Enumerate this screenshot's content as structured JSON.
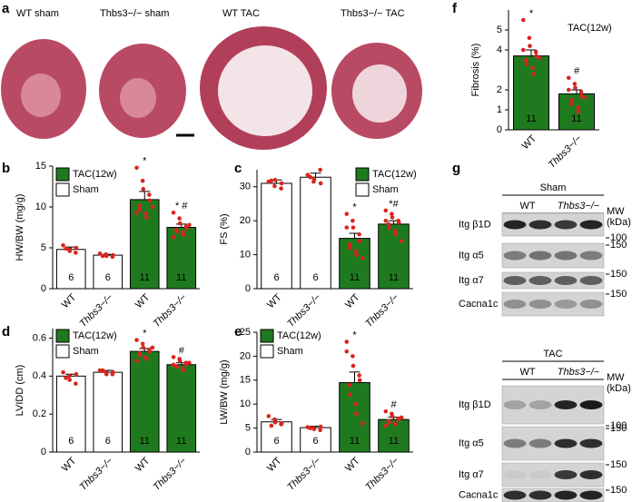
{
  "panel_a": {
    "label": "a",
    "images": [
      "WT sham",
      "Thbs3−/− sham",
      "WT TAC",
      "Thbs3−/− TAC"
    ]
  },
  "chart_data": [
    {
      "type": "bar",
      "panel": "b",
      "ylabel": "HW/BW (mg/g)",
      "categories": [
        "WT",
        "Thbs3−/−",
        "WT",
        "Thbs3−/−"
      ],
      "values": [
        4.8,
        4.1,
        10.9,
        7.5
      ],
      "errors": [
        0.3,
        0.1,
        1.0,
        0.4
      ],
      "colors": [
        "#ffffff",
        "#ffffff",
        "#1f7a1f",
        "#1f7a1f"
      ],
      "n": [
        6,
        6,
        11,
        11
      ],
      "points": [
        [
          5.3,
          4.8,
          4.6,
          4.4,
          5.0,
          4.9
        ],
        [
          4.3,
          4.2,
          4.0,
          3.9,
          4.1,
          4.0
        ],
        [
          14.8,
          13.2,
          12.2,
          11.5,
          10.8,
          10.2,
          9.7,
          9.2,
          8.7,
          10.0,
          9.3
        ],
        [
          9.3,
          8.6,
          8.0,
          7.6,
          7.4,
          7.2,
          7.0,
          6.9,
          6.6,
          7.8,
          6.3
        ]
      ],
      "point_color": "#d7261e",
      "ylim": [
        0,
        15
      ],
      "yticks": [
        0,
        5,
        10,
        15
      ],
      "legend": [
        {
          "name": "TAC(12w)",
          "color": "#1f7a1f",
          "text_color": "#d7261e"
        },
        {
          "name": "Sham",
          "color": "#ffffff",
          "text_color": "#000000"
        }
      ],
      "annotations": [
        {
          "index": 2,
          "text": "*"
        },
        {
          "index": 3,
          "text": "* #"
        }
      ]
    },
    {
      "type": "bar",
      "panel": "c",
      "ylabel": "FS (%)",
      "categories": [
        "WT",
        "Thbs3−/−",
        "WT",
        "Thbs3−/−"
      ],
      "values": [
        31,
        32.8,
        14.8,
        19
      ],
      "errors": [
        1.0,
        1.2,
        1.5,
        1.0
      ],
      "colors": [
        "#ffffff",
        "#ffffff",
        "#1f7a1f",
        "#1f7a1f"
      ],
      "n": [
        6,
        6,
        11,
        11
      ],
      "points": [
        [
          31.5,
          30.2,
          32.0,
          29.5,
          31.0,
          31.8
        ],
        [
          33.5,
          31.5,
          32.2,
          35,
          31,
          32.8
        ],
        [
          22,
          20,
          18,
          16,
          14,
          13,
          12,
          11,
          10,
          9,
          18
        ],
        [
          23,
          22,
          21,
          20,
          19.5,
          19,
          18,
          17,
          16,
          14,
          20
        ]
      ],
      "point_color": "#d7261e",
      "ylim": [
        0,
        35
      ],
      "yticks": [
        0,
        10,
        20,
        30
      ],
      "legend": [
        {
          "name": "TAC(12w)",
          "color": "#1f7a1f",
          "text_color": "#d7261e"
        },
        {
          "name": "Sham",
          "color": "#ffffff",
          "text_color": "#000000"
        }
      ],
      "annotations": [
        {
          "index": 2,
          "text": "*"
        },
        {
          "index": 3,
          "text": "*#"
        }
      ]
    },
    {
      "type": "bar",
      "panel": "d",
      "ylabel": "LVIDD (cm)",
      "categories": [
        "WT",
        "Thbs3−/−",
        "WT",
        "Thbs3−/−"
      ],
      "values": [
        0.4,
        0.42,
        0.53,
        0.46
      ],
      "errors": [
        0.01,
        0.01,
        0.015,
        0.01
      ],
      "colors": [
        "#ffffff",
        "#ffffff",
        "#1f7a1f",
        "#1f7a1f"
      ],
      "n": [
        6,
        6,
        11,
        11
      ],
      "points": [
        [
          0.42,
          0.4,
          0.38,
          0.36,
          0.41,
          0.39
        ],
        [
          0.43,
          0.42,
          0.41,
          0.41,
          0.42,
          0.43
        ],
        [
          0.59,
          0.57,
          0.55,
          0.54,
          0.53,
          0.52,
          0.51,
          0.5,
          0.49,
          0.55,
          0.48
        ],
        [
          0.5,
          0.49,
          0.48,
          0.47,
          0.46,
          0.45,
          0.45,
          0.44,
          0.43,
          0.47,
          0.46
        ]
      ],
      "point_color": "#d7261e",
      "ylim": [
        0,
        0.65
      ],
      "yticks": [
        0,
        0.2,
        0.4,
        0.6
      ],
      "legend": [
        {
          "name": "TAC(12w)",
          "color": "#1f7a1f",
          "text_color": "#d7261e"
        },
        {
          "name": "Sham",
          "color": "#ffffff",
          "text_color": "#000000"
        }
      ],
      "annotations": [
        {
          "index": 2,
          "text": "*"
        },
        {
          "index": 3,
          "text": "#"
        }
      ]
    },
    {
      "type": "bar",
      "panel": "e",
      "ylabel": "LW/BW (mg/g)",
      "categories": [
        "WT",
        "Thbs3−/−",
        "WT",
        "Thbs3−/−"
      ],
      "values": [
        6.3,
        5.1,
        14.5,
        6.8
      ],
      "errors": [
        0.5,
        0.3,
        2.2,
        0.5
      ],
      "colors": [
        "#ffffff",
        "#ffffff",
        "#1f7a1f",
        "#1f7a1f"
      ],
      "n": [
        6,
        6,
        11,
        11
      ],
      "points": [
        [
          7.5,
          6.8,
          6.2,
          5.8,
          6.0,
          5.5
        ],
        [
          5.2,
          5.0,
          4.8,
          4.6,
          5.3,
          5.0
        ],
        [
          23,
          20,
          18,
          16,
          15,
          14,
          12,
          10,
          8,
          6,
          21
        ],
        [
          8.5,
          8,
          7.5,
          7,
          6.8,
          6.5,
          6.2,
          6,
          5.8,
          7.2,
          5.5
        ]
      ],
      "point_color": "#d7261e",
      "ylim": [
        0,
        25
      ],
      "yticks": [
        0,
        5,
        10,
        15,
        20,
        25
      ],
      "legend": [
        {
          "name": "TAC(12w)",
          "color": "#1f7a1f",
          "text_color": "#d7261e"
        },
        {
          "name": "Sham",
          "color": "#ffffff",
          "text_color": "#000000"
        }
      ],
      "annotations": [
        {
          "index": 2,
          "text": "*"
        },
        {
          "index": 3,
          "text": "#"
        }
      ]
    },
    {
      "type": "bar",
      "panel": "f",
      "ylabel": "Fibrosis (%)",
      "categories": [
        "WT",
        "Thbs3−/−"
      ],
      "values": [
        3.7,
        1.8
      ],
      "errors": [
        0.3,
        0.2
      ],
      "colors": [
        "#1f7a1f",
        "#1f7a1f"
      ],
      "n": [
        11,
        11
      ],
      "points": [
        [
          5.5,
          4.6,
          4.2,
          3.9,
          3.7,
          3.5,
          3.3,
          3.1,
          2.8,
          3.6,
          4.0
        ],
        [
          2.6,
          2.3,
          2.1,
          1.9,
          1.7,
          1.5,
          1.3,
          1.1,
          0.9,
          1.6,
          2.0
        ]
      ],
      "point_color": "#d7261e",
      "ylim": [
        0,
        6
      ],
      "yticks": [
        0,
        1,
        2,
        4,
        5
      ],
      "legend": [
        {
          "name": "TAC(12w)",
          "text_color": "#d7261e"
        }
      ],
      "annotations": [
        {
          "index": 0,
          "text": "*"
        },
        {
          "index": 1,
          "text": "#"
        }
      ]
    }
  ],
  "panel_g": {
    "label": "g",
    "blots": [
      {
        "group": "Sham",
        "genotypes": [
          "WT",
          "Thbs3−/−"
        ],
        "mw_label": [
          "MW",
          "(kDa)"
        ],
        "rows": [
          {
            "name": "Itg β1D",
            "mw": 100
          },
          {
            "name": "Itg α5",
            "mw": 150
          },
          {
            "name": "Itg α7",
            "mw": 150
          },
          {
            "name": "Cacna1c",
            "mw": 150
          }
        ]
      },
      {
        "group": "TAC",
        "genotypes": [
          "WT",
          "Thbs3−/−"
        ],
        "mw_label": [
          "MW",
          "(kDa)"
        ],
        "rows": [
          {
            "name": "Itg β1D",
            "mw": 100
          },
          {
            "name": "Itg α5",
            "mw": 150
          },
          {
            "name": "Itg α7",
            "mw": 150
          },
          {
            "name": "Cacna1c",
            "mw": 150
          }
        ]
      }
    ]
  }
}
